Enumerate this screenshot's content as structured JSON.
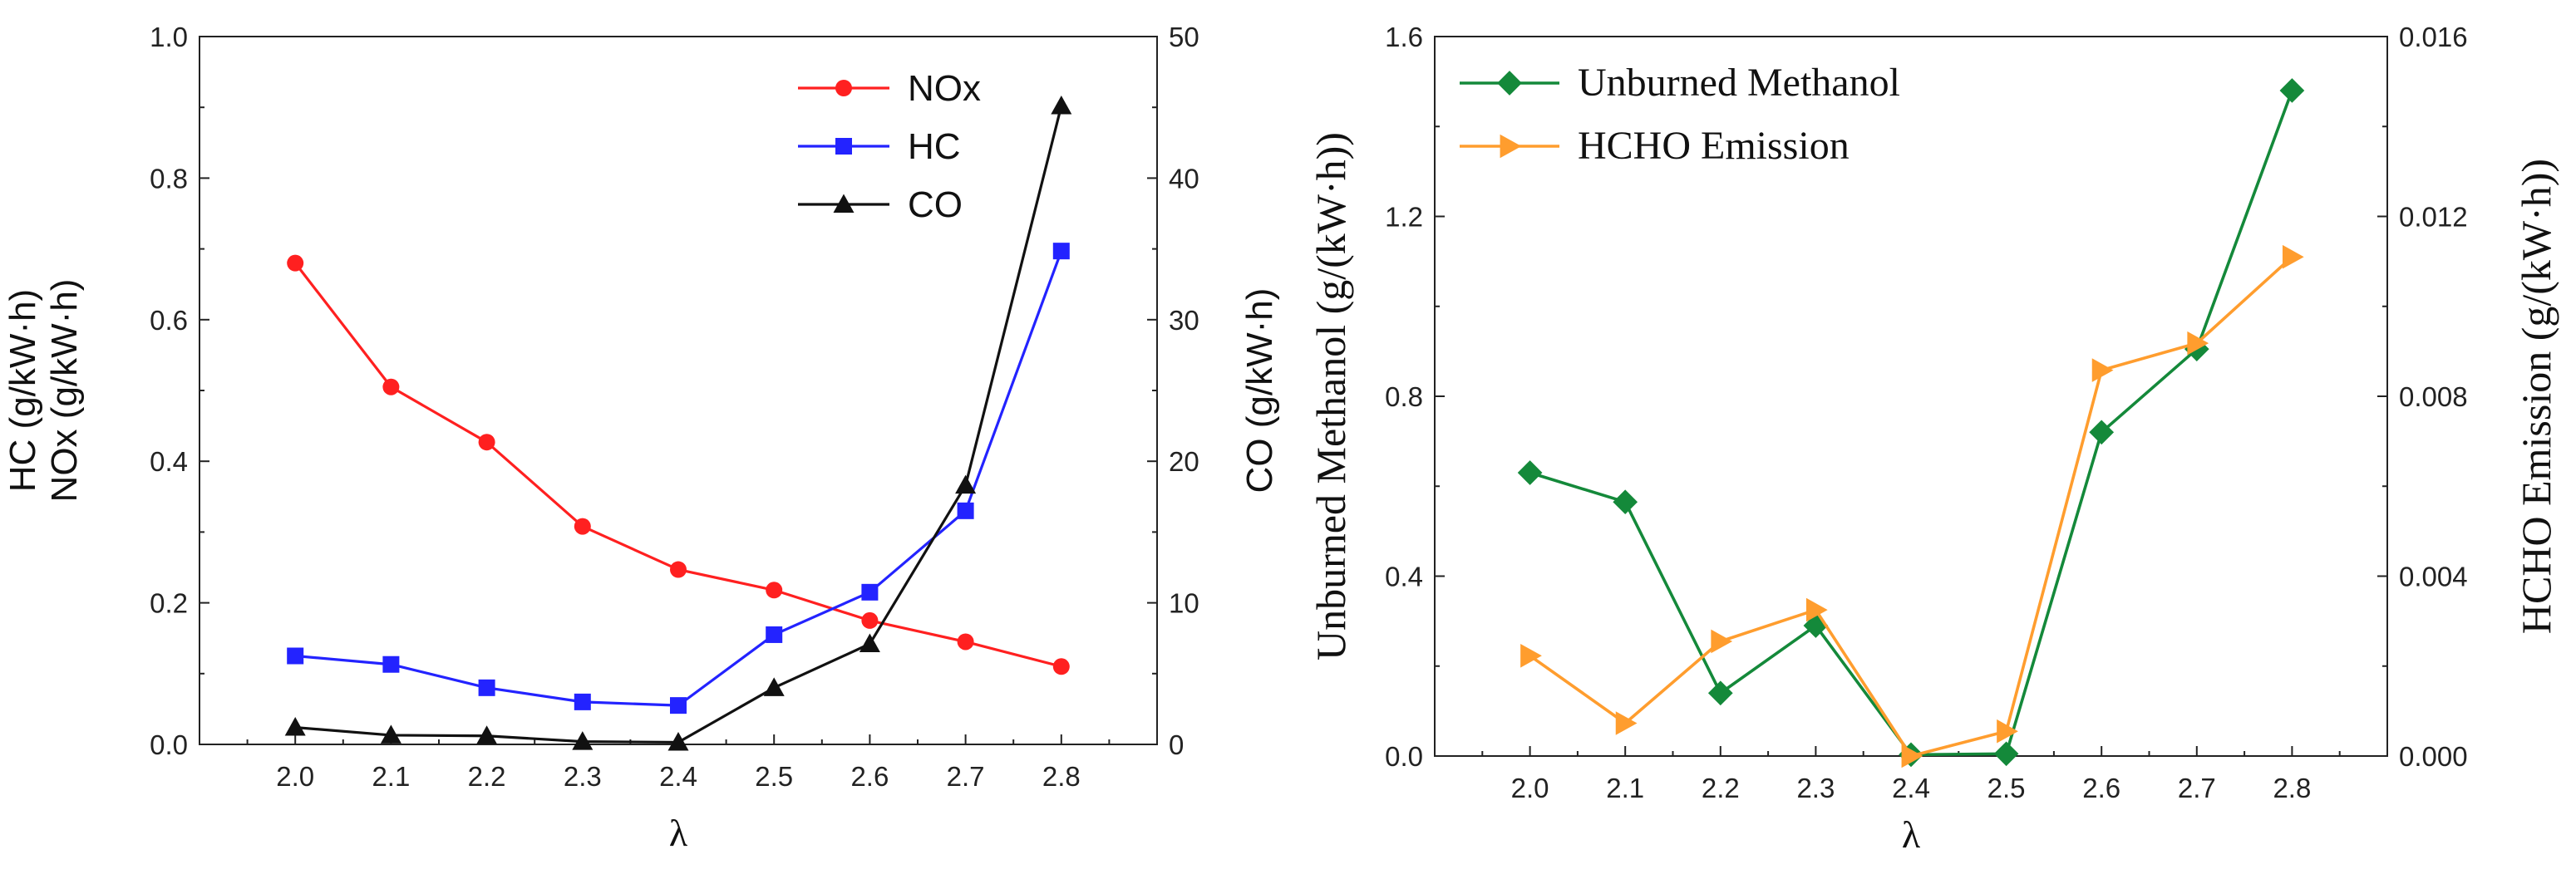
{
  "chart_data": [
    {
      "type": "line",
      "xlabel": "λ",
      "x": [
        2.0,
        2.1,
        2.2,
        2.3,
        2.4,
        2.5,
        2.6,
        2.7,
        2.8
      ],
      "xlim": [
        1.9,
        2.9
      ],
      "xticks": [
        "2.0",
        "2.1",
        "2.2",
        "2.3",
        "2.4",
        "2.5",
        "2.6",
        "2.7",
        "2.8"
      ],
      "ylabel_left_line1": "HC (g/kW·h)",
      "ylabel_left_line2": "NOx (g/kW·h)",
      "ylim_left": [
        0,
        1.0
      ],
      "yticks_left": [
        "0.0",
        "0.2",
        "0.4",
        "0.6",
        "0.8",
        "1.0"
      ],
      "ylabel_right": "CO (g/kW·h)",
      "ylim_right": [
        0,
        50
      ],
      "yticks_right": [
        "0",
        "10",
        "20",
        "30",
        "40",
        "50"
      ],
      "legend_position": "top-right",
      "series": [
        {
          "name": "NOx",
          "axis": "left",
          "color": "#ff2020",
          "marker": "circle",
          "values": [
            0.68,
            0.505,
            0.427,
            0.308,
            0.247,
            0.218,
            0.175,
            0.145,
            0.11
          ]
        },
        {
          "name": "HC",
          "axis": "left",
          "color": "#2323ff",
          "marker": "square",
          "values": [
            0.125,
            0.113,
            0.08,
            0.06,
            0.055,
            0.155,
            0.215,
            0.33,
            0.697
          ]
        },
        {
          "name": "CO",
          "axis": "right",
          "color": "#111111",
          "marker": "triangle",
          "values": [
            1.2,
            0.65,
            0.6,
            0.2,
            0.15,
            4.0,
            7.1,
            18.3,
            45.1
          ]
        }
      ]
    },
    {
      "type": "line",
      "xlabel": "λ",
      "x": [
        2.0,
        2.1,
        2.2,
        2.3,
        2.4,
        2.5,
        2.6,
        2.7,
        2.8
      ],
      "xlim": [
        1.9,
        2.9
      ],
      "xticks": [
        "2.0",
        "2.1",
        "2.2",
        "2.3",
        "2.4",
        "2.5",
        "2.6",
        "2.7",
        "2.8"
      ],
      "ylabel_left": "Unburned Methanol (g/(kW·h))",
      "ylim_left": [
        0,
        1.6
      ],
      "yticks_left": [
        "0.0",
        "0.4",
        "0.8",
        "1.2",
        "1.6"
      ],
      "ylabel_right": "HCHO Emission (g/(kW·h))",
      "ylim_right": [
        0,
        0.016
      ],
      "yticks_right": [
        "0.000",
        "0.004",
        "0.008",
        "0.012",
        "0.016"
      ],
      "legend_position": "top-left",
      "series": [
        {
          "name": "Unburned Methanol",
          "axis": "left",
          "color": "#14893a",
          "marker": "diamond",
          "values": [
            0.63,
            0.565,
            0.14,
            0.29,
            0.003,
            0.005,
            0.72,
            0.905,
            1.48
          ]
        },
        {
          "name": "HCHO Emission",
          "axis": "right",
          "color": "#ff9d2e",
          "marker": "triangle-right",
          "values": [
            0.00223,
            0.00073,
            0.00255,
            0.00325,
            0.0,
            0.00055,
            0.00858,
            0.00918,
            0.0111
          ]
        }
      ]
    }
  ]
}
